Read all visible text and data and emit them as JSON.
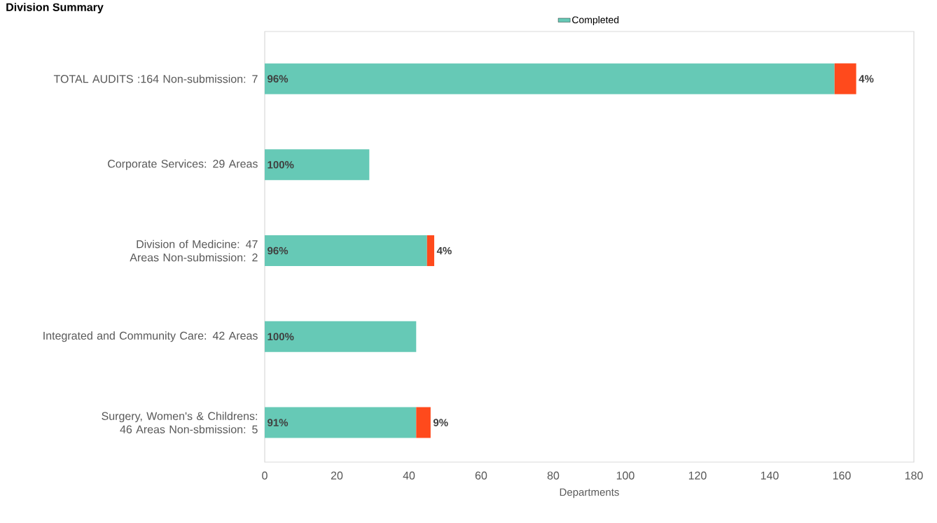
{
  "chart_data": {
    "type": "bar",
    "orientation": "horizontal",
    "stacked": true,
    "title": "Division Summary",
    "xlabel": "Departments",
    "categories": [
      "TOTAL AUDITS :164 Non-submission: 7",
      "Corporate Services: 29 Areas",
      "Division of Medicine: 47 Areas Non-submission: 2",
      "Integrated and Community Care: 42 Areas",
      "Surgery, Women's & Childrens: 46 Areas Non-sbmission: 5"
    ],
    "series": [
      {
        "name": "Completed",
        "color": "#66c9b6",
        "values": [
          158,
          29,
          45,
          42,
          42
        ]
      },
      {
        "color": "#ff4a1c",
        "values": [
          6,
          null,
          2,
          null,
          4
        ]
      }
    ],
    "annotations": [
      {
        "text": "96%",
        "x": 0,
        "y": "TOTAL AUDITS :164 Non-submission: 7"
      },
      {
        "text": "4%",
        "x": 164,
        "y": "TOTAL AUDITS :164 Non-submission: 7"
      },
      {
        "text": "100%",
        "x": 0,
        "y": "Corporate Services: 29 Areas"
      },
      {
        "text": "96%",
        "x": 0,
        "y": "Division of Medicine: 47 Areas Non-submission: 2"
      },
      {
        "text": "4%",
        "x": 47,
        "y": "Division of Medicine: 47 Areas Non-submission: 2"
      },
      {
        "text": "100%",
        "x": 0,
        "y": "Integrated and Community Care: 42 Areas"
      },
      {
        "text": "91%",
        "x": 0,
        "y": "Surgery, Women's & Childrens: 46 Areas Non-sbmission: 5"
      },
      {
        "text": "9%",
        "x": 46,
        "y": "Surgery, Women's & Childrens: 46 Areas Non-sbmission: 5"
      }
    ],
    "xlim": [
      0,
      180
    ],
    "xticks": [
      0,
      20,
      40,
      60,
      80,
      100,
      120,
      140,
      160,
      180
    ],
    "grid": false,
    "legend": "top"
  }
}
